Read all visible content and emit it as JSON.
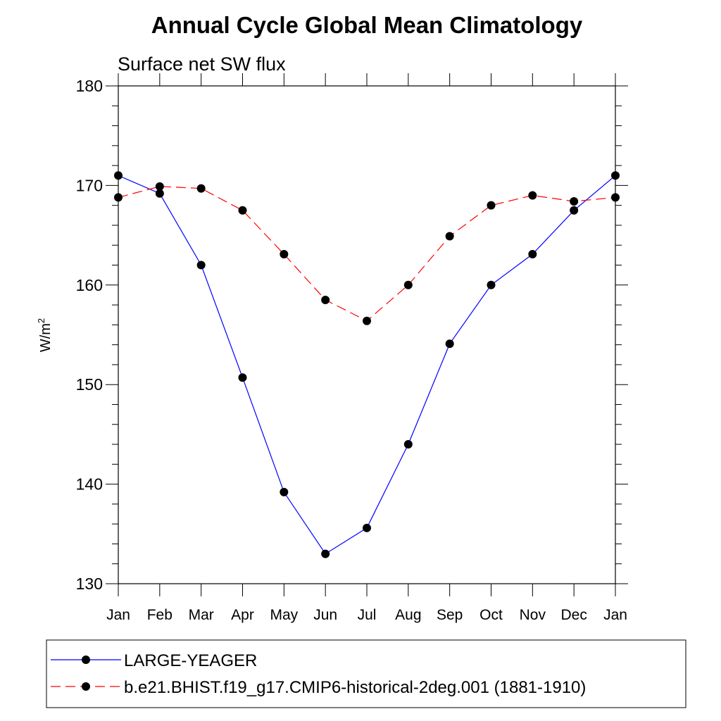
{
  "chart_data": {
    "type": "line",
    "title": "Annual Cycle Global Mean Climatology",
    "subtitle": "Surface net SW flux",
    "xlabel": "",
    "ylabel": "W/m",
    "ylabel_superscript": "2",
    "ylim": [
      130,
      180
    ],
    "yticks": [
      130,
      140,
      150,
      160,
      170,
      180
    ],
    "categories": [
      "Jan",
      "Feb",
      "Mar",
      "Apr",
      "May",
      "Jun",
      "Jul",
      "Aug",
      "Sep",
      "Oct",
      "Nov",
      "Dec",
      "Jan"
    ],
    "grid": false,
    "legend_position": "bottom",
    "series": [
      {
        "name": "LARGE-YEAGER",
        "color": "#0000ff",
        "line_style": "solid",
        "marker": "filled-circle",
        "values": [
          171.0,
          169.2,
          162.0,
          150.7,
          139.2,
          133.0,
          135.6,
          144.0,
          154.1,
          160.0,
          163.1,
          167.5,
          171.0
        ]
      },
      {
        "name": "b.e21.BHIST.f19_g17.CMIP6-historical-2deg.001 (1881-1910)",
        "color": "#ff0000",
        "line_style": "dashed",
        "marker": "filled-circle",
        "values": [
          168.8,
          169.9,
          169.7,
          167.5,
          163.1,
          158.5,
          156.4,
          160.0,
          164.9,
          168.0,
          169.0,
          168.4,
          168.8
        ]
      }
    ]
  }
}
